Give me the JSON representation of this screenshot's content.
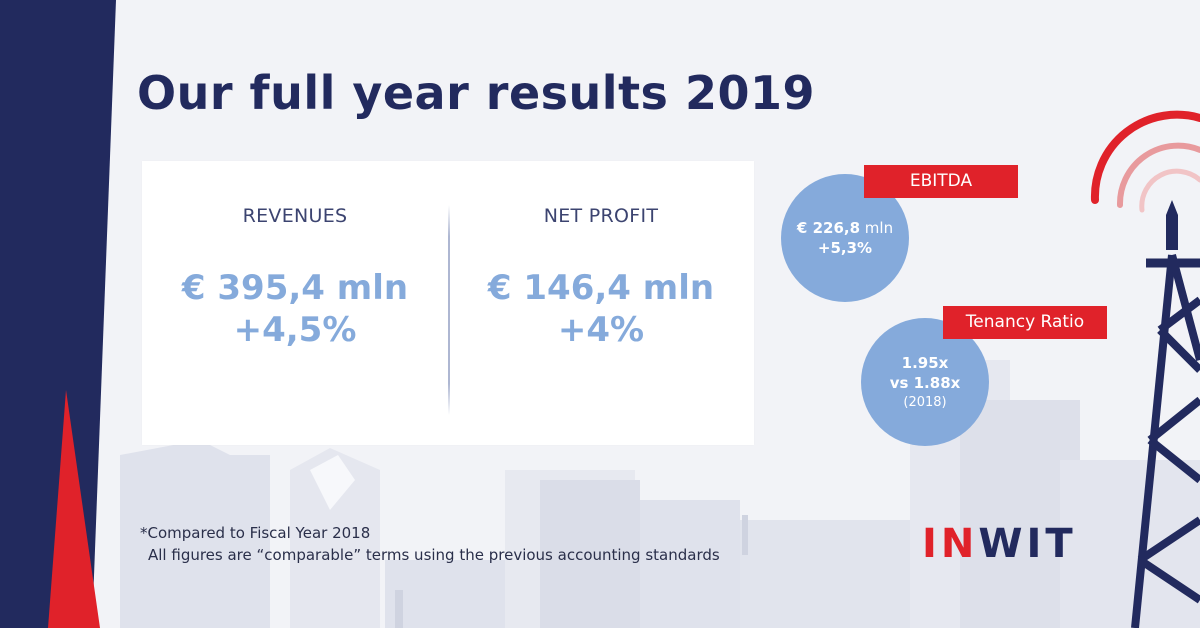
{
  "title": "Our full year results 2019",
  "revenues": {
    "label": "REVENUES",
    "amount": "€ 395,4 mln",
    "change": "+4,5%"
  },
  "net_profit": {
    "label": "NET PROFIT",
    "amount": "€ 146,4 mln",
    "change": "+4%"
  },
  "ebitda": {
    "badge": "EBITDA",
    "amount_bold": "€ 226,8",
    "amount_unit": " mln",
    "change": "+5,3%"
  },
  "tenancy": {
    "badge": "Tenancy Ratio",
    "value": "1.95x",
    "compare": "vs 1.88x",
    "year": "(2018)"
  },
  "footnote": {
    "line1": "*Compared to Fiscal Year 2018",
    "line2": "All figures are “comparable” terms using the previous accounting standards"
  },
  "logo": {
    "part1": "IN",
    "part2": "WI",
    "part3": "T"
  },
  "colors": {
    "navy": "#222a5e",
    "red": "#e0222a",
    "light_blue": "#85aadb",
    "background": "#f2f3f7"
  }
}
